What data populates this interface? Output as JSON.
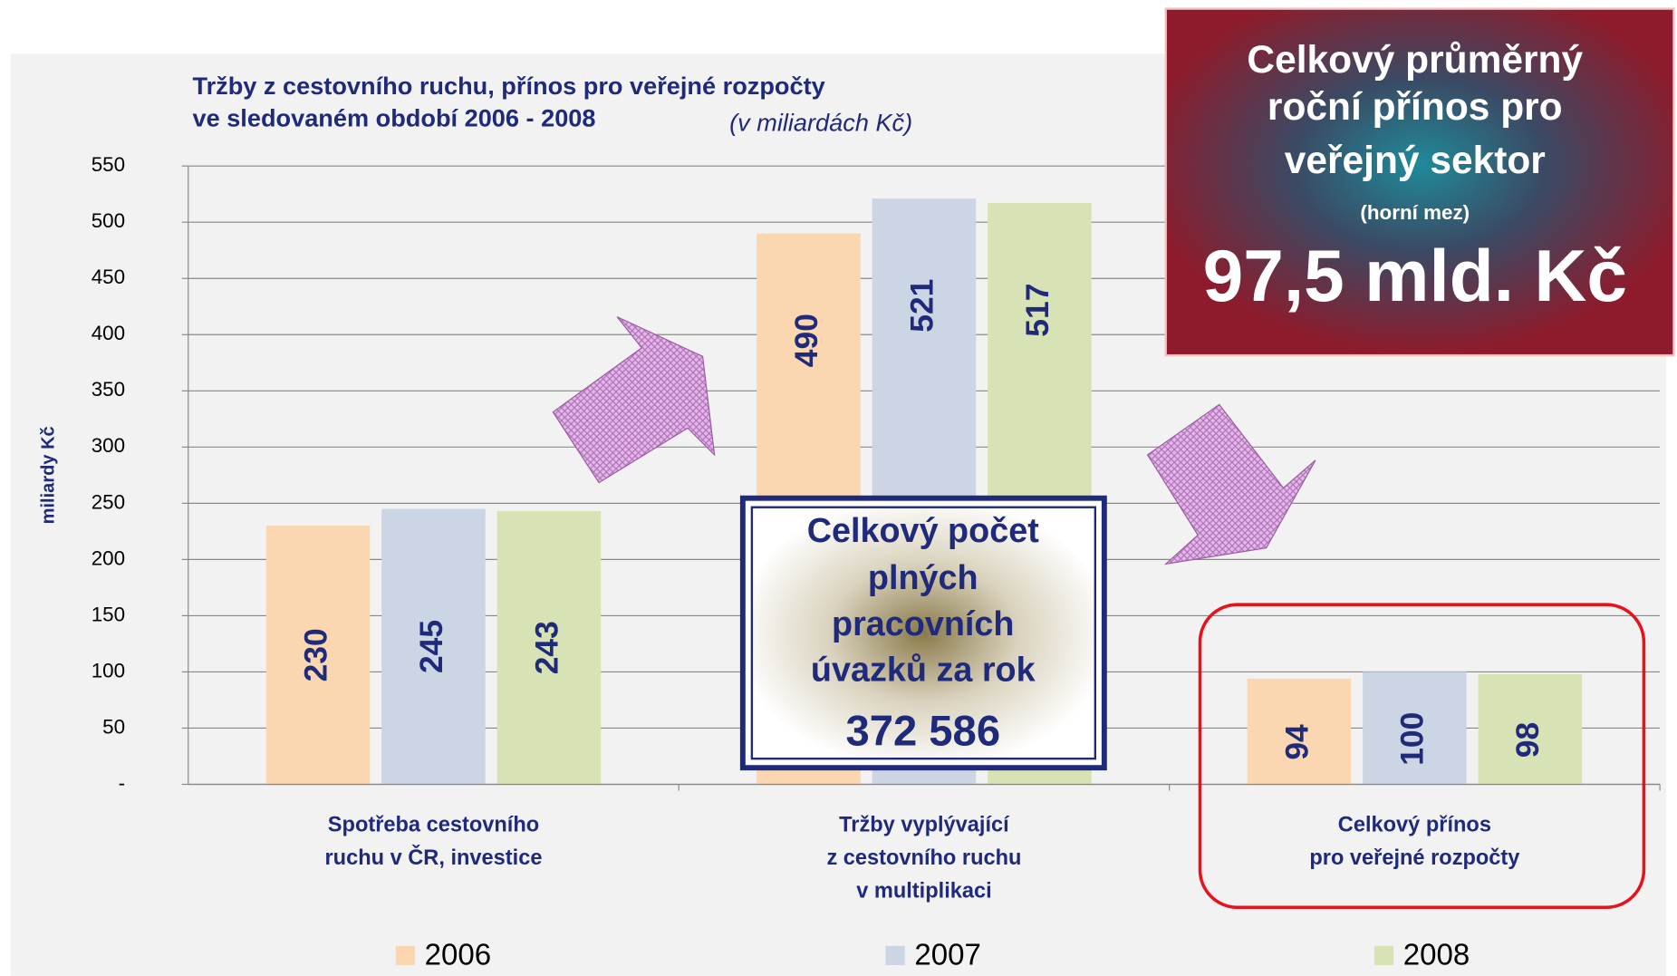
{
  "chart_data": {
    "type": "bar",
    "title": "Tržby z cestovního ruchu, přínos pro veřejné rozpočty\nve sledovaném období 2006 - 2008",
    "subtitle": "(v miliardách Kč)",
    "y_label": "miliardy Kč",
    "categories": [
      "Spotřeba cestovního\nruchu v ČR, investice",
      "Tržby vyplývající\nz cestovního ruchu\nv multiplikaci",
      "Celkový přínos\npro veřejné rozpočty"
    ],
    "series": [
      {
        "name": "2006",
        "color": "#fad7b0",
        "values": [
          230,
          490,
          94
        ]
      },
      {
        "name": "2007",
        "color": "#ccd5e3",
        "values": [
          245,
          521,
          100
        ]
      },
      {
        "name": "2008",
        "color": "#d7e2b5",
        "values": [
          243,
          517,
          98
        ]
      }
    ],
    "ylim": [
      0,
      550
    ],
    "yticks": [
      {
        "value": 0,
        "label": "-"
      },
      50,
      100,
      150,
      200,
      250,
      300,
      350,
      400,
      450,
      500,
      550
    ],
    "grid": true,
    "legend": "bottom",
    "annotations": {
      "red_box": [
        "Celkový průměrný",
        "roční přínos pro",
        "veřejný sektor",
        "(horní mez)",
        "97,5 mld. Kč"
      ],
      "center_box": [
        "Celkový počet",
        "plných",
        "pracovních",
        "úvazků za rok",
        "372 586"
      ]
    }
  }
}
